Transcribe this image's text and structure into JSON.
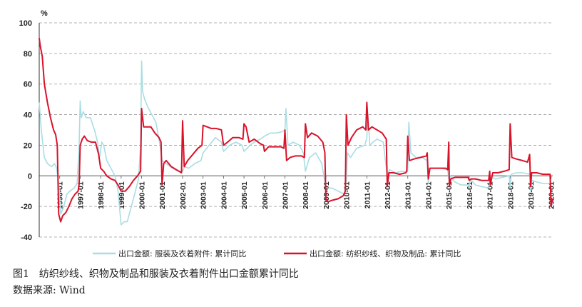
{
  "figure": {
    "label": "图1",
    "title": "纺织纱线、织物及制品和服装及衣着附件出口金额累计同比",
    "source": "数据来源: Wind"
  },
  "chart_data": {
    "type": "line",
    "y_unit": "%",
    "ylim": [
      -40,
      100
    ],
    "y_ticks": [
      -40,
      -20,
      0,
      20,
      40,
      60,
      80,
      100
    ],
    "x_ticks": [
      "1996-01",
      "1997-01",
      "1998-01",
      "1999-01",
      "2000-01",
      "2001-01",
      "2002-01",
      "2003-01",
      "2004-01",
      "2005-01",
      "2006-01",
      "2007-01",
      "2008-01",
      "2009-01",
      "2010-01",
      "2011-01",
      "2012-01",
      "2013-01",
      "2014-01",
      "2015-01",
      "2016-01",
      "2017-01",
      "2018-01",
      "2019-01",
      "2020-01"
    ],
    "x_range": [
      1995.0,
      2020.08
    ],
    "grid": "horizontal dashed",
    "legend_position": "bottom",
    "series": [
      {
        "name": "出口金额: 服装及衣着附件: 累计同比",
        "color": "#a9dde3",
        "points": [
          [
            1995.0,
            48
          ],
          [
            1995.1,
            30
          ],
          [
            1995.25,
            12
          ],
          [
            1995.4,
            8
          ],
          [
            1995.6,
            6
          ],
          [
            1995.75,
            8
          ],
          [
            1995.85,
            5
          ],
          [
            1995.95,
            -5
          ],
          [
            1996.05,
            -25
          ],
          [
            1996.2,
            -20
          ],
          [
            1996.35,
            -12
          ],
          [
            1996.5,
            -10
          ],
          [
            1996.7,
            -8
          ],
          [
            1996.85,
            -5
          ],
          [
            1996.95,
            20
          ],
          [
            1997.0,
            49
          ],
          [
            1997.05,
            38
          ],
          [
            1997.15,
            42
          ],
          [
            1997.3,
            38
          ],
          [
            1997.5,
            38
          ],
          [
            1997.7,
            30
          ],
          [
            1997.85,
            22
          ],
          [
            1997.95,
            12
          ],
          [
            1998.05,
            22
          ],
          [
            1998.15,
            20
          ],
          [
            1998.3,
            10
          ],
          [
            1998.5,
            5
          ],
          [
            1998.7,
            0
          ],
          [
            1998.85,
            -10
          ],
          [
            1999.0,
            -32
          ],
          [
            1999.15,
            -30
          ],
          [
            1999.3,
            -30
          ],
          [
            1999.5,
            -20
          ],
          [
            1999.7,
            -10
          ],
          [
            1999.85,
            -2
          ],
          [
            1999.95,
            20
          ],
          [
            2000.0,
            75
          ],
          [
            2000.05,
            55
          ],
          [
            2000.15,
            50
          ],
          [
            2000.3,
            45
          ],
          [
            2000.5,
            40
          ],
          [
            2000.7,
            35
          ],
          [
            2000.9,
            20
          ],
          [
            2001.0,
            10
          ],
          [
            2001.2,
            8
          ],
          [
            2001.5,
            5
          ],
          [
            2001.8,
            3
          ],
          [
            2002.0,
            3
          ],
          [
            2002.1,
            6
          ],
          [
            2002.3,
            5
          ],
          [
            2002.6,
            8
          ],
          [
            2002.9,
            10
          ],
          [
            2003.0,
            15
          ],
          [
            2003.3,
            20
          ],
          [
            2003.6,
            25
          ],
          [
            2003.9,
            22
          ],
          [
            2004.0,
            16
          ],
          [
            2004.3,
            20
          ],
          [
            2004.6,
            22
          ],
          [
            2004.9,
            20
          ],
          [
            2005.0,
            16
          ],
          [
            2005.3,
            20
          ],
          [
            2005.5,
            22
          ],
          [
            2005.8,
            24
          ],
          [
            2006.0,
            26
          ],
          [
            2006.3,
            28
          ],
          [
            2006.6,
            28
          ],
          [
            2006.9,
            29
          ],
          [
            2007.0,
            30
          ],
          [
            2007.05,
            44
          ],
          [
            2007.15,
            20
          ],
          [
            2007.4,
            22
          ],
          [
            2007.7,
            20
          ],
          [
            2007.9,
            15
          ],
          [
            2008.0,
            3
          ],
          [
            2008.2,
            12
          ],
          [
            2008.5,
            15
          ],
          [
            2008.8,
            8
          ],
          [
            2009.0,
            -8
          ],
          [
            2009.3,
            -8
          ],
          [
            2009.6,
            -10
          ],
          [
            2009.9,
            -12
          ],
          [
            2010.0,
            -2
          ],
          [
            2010.05,
            15
          ],
          [
            2010.2,
            12
          ],
          [
            2010.5,
            18
          ],
          [
            2010.9,
            20
          ],
          [
            2011.0,
            25
          ],
          [
            2011.05,
            40
          ],
          [
            2011.15,
            20
          ],
          [
            2011.3,
            22
          ],
          [
            2011.5,
            24
          ],
          [
            2011.8,
            22
          ],
          [
            2012.0,
            0
          ],
          [
            2012.1,
            4
          ],
          [
            2012.4,
            2
          ],
          [
            2012.7,
            3
          ],
          [
            2012.95,
            3
          ],
          [
            2013.0,
            3
          ],
          [
            2013.05,
            35
          ],
          [
            2013.15,
            15
          ],
          [
            2013.4,
            12
          ],
          [
            2013.7,
            12
          ],
          [
            2013.95,
            10
          ],
          [
            2014.0,
            -5
          ],
          [
            2014.05,
            5
          ],
          [
            2014.3,
            5
          ],
          [
            2014.6,
            5
          ],
          [
            2014.95,
            4
          ],
          [
            2015.0,
            -2
          ],
          [
            2015.05,
            0
          ],
          [
            2015.3,
            -4
          ],
          [
            2015.6,
            -6
          ],
          [
            2015.95,
            -6
          ],
          [
            2016.0,
            -8
          ],
          [
            2016.05,
            -2
          ],
          [
            2016.3,
            -6
          ],
          [
            2016.6,
            -7
          ],
          [
            2016.95,
            -8
          ],
          [
            2017.0,
            -4
          ],
          [
            2017.05,
            -1
          ],
          [
            2017.3,
            -2
          ],
          [
            2017.6,
            -1
          ],
          [
            2017.95,
            0
          ],
          [
            2018.0,
            -8
          ],
          [
            2018.05,
            1
          ],
          [
            2018.3,
            2
          ],
          [
            2018.6,
            2
          ],
          [
            2018.95,
            1
          ],
          [
            2019.0,
            -10
          ],
          [
            2019.05,
            -3
          ],
          [
            2019.3,
            -4
          ],
          [
            2019.6,
            -5
          ],
          [
            2019.95,
            -5
          ],
          [
            2020.0,
            -20
          ],
          [
            2020.08,
            -18
          ]
        ]
      },
      {
        "name": "出口金额: 纺织纱线、织物及制品: 累计同比",
        "color": "#d9122a",
        "points": [
          [
            1995.0,
            90
          ],
          [
            1995.05,
            85
          ],
          [
            1995.15,
            78
          ],
          [
            1995.25,
            60
          ],
          [
            1995.4,
            48
          ],
          [
            1995.55,
            38
          ],
          [
            1995.7,
            30
          ],
          [
            1995.8,
            27
          ],
          [
            1995.88,
            20
          ],
          [
            1995.95,
            -25
          ],
          [
            1996.05,
            -30
          ],
          [
            1996.15,
            -26
          ],
          [
            1996.3,
            -24
          ],
          [
            1996.45,
            -20
          ],
          [
            1996.6,
            -15
          ],
          [
            1996.75,
            -12
          ],
          [
            1996.9,
            -10
          ],
          [
            1996.95,
            -5
          ],
          [
            1997.0,
            20
          ],
          [
            1997.1,
            24
          ],
          [
            1997.2,
            26
          ],
          [
            1997.35,
            23
          ],
          [
            1997.55,
            22
          ],
          [
            1997.75,
            22
          ],
          [
            1997.9,
            14
          ],
          [
            1998.0,
            5
          ],
          [
            1998.15,
            3
          ],
          [
            1998.3,
            0
          ],
          [
            1998.5,
            -2
          ],
          [
            1998.7,
            -3
          ],
          [
            1998.85,
            -6
          ],
          [
            1999.0,
            -10
          ],
          [
            1999.2,
            -10
          ],
          [
            1999.4,
            -7
          ],
          [
            1999.6,
            -3
          ],
          [
            1999.8,
            0
          ],
          [
            1999.95,
            3
          ],
          [
            2000.0,
            44
          ],
          [
            2000.1,
            32
          ],
          [
            2000.25,
            32
          ],
          [
            2000.45,
            32
          ],
          [
            2000.65,
            28
          ],
          [
            2000.85,
            25
          ],
          [
            2000.95,
            22
          ],
          [
            2001.0,
            -6
          ],
          [
            2001.08,
            8
          ],
          [
            2001.2,
            10
          ],
          [
            2001.45,
            6
          ],
          [
            2001.7,
            4
          ],
          [
            2001.95,
            2
          ],
          [
            2002.0,
            36
          ],
          [
            2002.08,
            6
          ],
          [
            2002.25,
            10
          ],
          [
            2002.5,
            14
          ],
          [
            2002.75,
            18
          ],
          [
            2002.95,
            20
          ],
          [
            2003.0,
            33
          ],
          [
            2003.2,
            32
          ],
          [
            2003.4,
            31
          ],
          [
            2003.65,
            31
          ],
          [
            2003.9,
            30
          ],
          [
            2004.0,
            20
          ],
          [
            2004.2,
            22
          ],
          [
            2004.45,
            25
          ],
          [
            2004.75,
            25
          ],
          [
            2004.95,
            24
          ],
          [
            2005.0,
            34
          ],
          [
            2005.1,
            32
          ],
          [
            2005.25,
            22
          ],
          [
            2005.5,
            24
          ],
          [
            2005.8,
            21
          ],
          [
            2005.95,
            20
          ],
          [
            2006.0,
            16
          ],
          [
            2006.2,
            19
          ],
          [
            2006.5,
            19
          ],
          [
            2006.8,
            19
          ],
          [
            2006.95,
            18
          ],
          [
            2007.0,
            30
          ],
          [
            2007.08,
            10
          ],
          [
            2007.25,
            12
          ],
          [
            2007.5,
            13
          ],
          [
            2007.8,
            13
          ],
          [
            2007.95,
            12
          ],
          [
            2008.0,
            34
          ],
          [
            2008.1,
            25
          ],
          [
            2008.3,
            28
          ],
          [
            2008.6,
            26
          ],
          [
            2008.85,
            22
          ],
          [
            2008.95,
            15
          ],
          [
            2009.0,
            -15
          ],
          [
            2009.1,
            -17
          ],
          [
            2009.3,
            -16
          ],
          [
            2009.6,
            -15
          ],
          [
            2009.85,
            -13
          ],
          [
            2009.95,
            -10
          ],
          [
            2010.0,
            40
          ],
          [
            2010.08,
            20
          ],
          [
            2010.25,
            25
          ],
          [
            2010.5,
            30
          ],
          [
            2010.8,
            32
          ],
          [
            2010.95,
            30
          ],
          [
            2011.0,
            48
          ],
          [
            2011.08,
            30
          ],
          [
            2011.25,
            32
          ],
          [
            2011.5,
            30
          ],
          [
            2011.75,
            28
          ],
          [
            2011.95,
            24
          ],
          [
            2012.0,
            -7
          ],
          [
            2012.08,
            2
          ],
          [
            2012.3,
            2
          ],
          [
            2012.6,
            1
          ],
          [
            2012.9,
            2
          ],
          [
            2012.95,
            3
          ],
          [
            2013.0,
            26
          ],
          [
            2013.08,
            10
          ],
          [
            2013.3,
            11
          ],
          [
            2013.6,
            12
          ],
          [
            2013.9,
            13
          ],
          [
            2013.95,
            15
          ],
          [
            2014.0,
            -2
          ],
          [
            2014.08,
            5
          ],
          [
            2014.3,
            5
          ],
          [
            2014.6,
            5
          ],
          [
            2014.85,
            5
          ],
          [
            2014.95,
            4
          ],
          [
            2015.0,
            22
          ],
          [
            2015.03,
            -7
          ],
          [
            2015.1,
            -2
          ],
          [
            2015.3,
            -1
          ],
          [
            2015.6,
            -1
          ],
          [
            2015.95,
            -1
          ],
          [
            2016.0,
            -3
          ],
          [
            2016.1,
            -2
          ],
          [
            2016.3,
            -2
          ],
          [
            2016.6,
            -3
          ],
          [
            2016.95,
            -3
          ],
          [
            2017.0,
            3
          ],
          [
            2017.03,
            -6
          ],
          [
            2017.15,
            2
          ],
          [
            2017.4,
            2
          ],
          [
            2017.7,
            3
          ],
          [
            2017.95,
            4
          ],
          [
            2018.0,
            34
          ],
          [
            2018.08,
            12
          ],
          [
            2018.3,
            11
          ],
          [
            2018.6,
            10
          ],
          [
            2018.85,
            9
          ],
          [
            2018.95,
            14
          ],
          [
            2019.0,
            -7
          ],
          [
            2019.05,
            2
          ],
          [
            2019.3,
            2
          ],
          [
            2019.6,
            1
          ],
          [
            2019.95,
            1
          ],
          [
            2020.0,
            -20
          ],
          [
            2020.05,
            -16
          ],
          [
            2020.08,
            -15
          ]
        ]
      }
    ]
  }
}
